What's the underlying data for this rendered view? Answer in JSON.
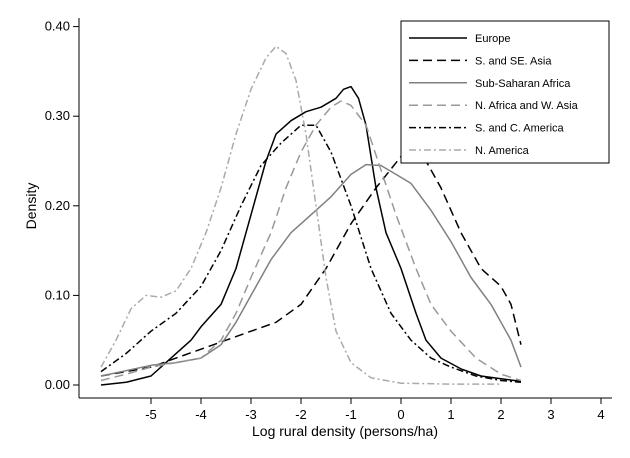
{
  "chart_data": {
    "type": "line",
    "xlabel": "Log rural density (persons/ha)",
    "ylabel": "Density",
    "xlim": [
      -6,
      4
    ],
    "ylim": [
      0,
      0.42
    ],
    "xticks": [
      -5,
      -4,
      -3,
      -2,
      -1,
      0,
      1,
      2,
      3,
      4
    ],
    "xtick_labels": [
      "-5",
      "-4",
      "-3",
      "-2",
      "-1",
      "0",
      "1",
      "2",
      "3",
      "4"
    ],
    "yticks": [
      0,
      0.1,
      0.2,
      0.3,
      0.4
    ],
    "ytick_labels": [
      "0.00",
      "0.10",
      "0.20",
      "0.30",
      "0.40"
    ],
    "grid": false,
    "legend_position": "top-right",
    "series": [
      {
        "name": "Europe",
        "color": "#000000",
        "dash": "solid",
        "points": [
          [
            -6.0,
            0.0
          ],
          [
            -5.5,
            0.003
          ],
          [
            -5.0,
            0.01
          ],
          [
            -4.6,
            0.03
          ],
          [
            -4.2,
            0.05
          ],
          [
            -4.0,
            0.065
          ],
          [
            -3.6,
            0.09
          ],
          [
            -3.3,
            0.13
          ],
          [
            -3.0,
            0.19
          ],
          [
            -2.7,
            0.25
          ],
          [
            -2.5,
            0.28
          ],
          [
            -2.2,
            0.295
          ],
          [
            -1.9,
            0.305
          ],
          [
            -1.6,
            0.31
          ],
          [
            -1.3,
            0.32
          ],
          [
            -1.15,
            0.33
          ],
          [
            -1.0,
            0.333
          ],
          [
            -0.85,
            0.32
          ],
          [
            -0.7,
            0.29
          ],
          [
            -0.5,
            0.22
          ],
          [
            -0.3,
            0.17
          ],
          [
            0.0,
            0.13
          ],
          [
            0.3,
            0.08
          ],
          [
            0.5,
            0.05
          ],
          [
            0.8,
            0.03
          ],
          [
            1.2,
            0.018
          ],
          [
            1.6,
            0.01
          ],
          [
            2.0,
            0.007
          ],
          [
            2.4,
            0.004
          ]
        ]
      },
      {
        "name": "S. and SE. Asia",
        "color": "#000000",
        "dash": "dashed",
        "points": [
          [
            -6.0,
            0.01
          ],
          [
            -5.5,
            0.015
          ],
          [
            -5.0,
            0.02
          ],
          [
            -4.5,
            0.03
          ],
          [
            -4.0,
            0.04
          ],
          [
            -3.5,
            0.05
          ],
          [
            -3.0,
            0.06
          ],
          [
            -2.5,
            0.07
          ],
          [
            -2.0,
            0.09
          ],
          [
            -1.5,
            0.13
          ],
          [
            -1.0,
            0.18
          ],
          [
            -0.5,
            0.22
          ],
          [
            0.0,
            0.255
          ],
          [
            0.4,
            0.26
          ],
          [
            0.8,
            0.22
          ],
          [
            1.2,
            0.17
          ],
          [
            1.6,
            0.13
          ],
          [
            2.0,
            0.11
          ],
          [
            2.2,
            0.09
          ],
          [
            2.4,
            0.045
          ]
        ]
      },
      {
        "name": "Sub-Saharan Africa",
        "color": "#808080",
        "dash": "solid",
        "points": [
          [
            -6.0,
            0.01
          ],
          [
            -5.5,
            0.016
          ],
          [
            -5.0,
            0.022
          ],
          [
            -4.5,
            0.025
          ],
          [
            -4.0,
            0.03
          ],
          [
            -3.6,
            0.045
          ],
          [
            -3.3,
            0.07
          ],
          [
            -3.0,
            0.1
          ],
          [
            -2.6,
            0.14
          ],
          [
            -2.2,
            0.17
          ],
          [
            -1.8,
            0.19
          ],
          [
            -1.4,
            0.21
          ],
          [
            -1.0,
            0.235
          ],
          [
            -0.7,
            0.246
          ],
          [
            -0.4,
            0.245
          ],
          [
            -0.1,
            0.235
          ],
          [
            0.2,
            0.225
          ],
          [
            0.6,
            0.195
          ],
          [
            1.0,
            0.16
          ],
          [
            1.4,
            0.12
          ],
          [
            1.8,
            0.09
          ],
          [
            2.2,
            0.05
          ],
          [
            2.4,
            0.02
          ]
        ]
      },
      {
        "name": "N. Africa and W. Asia",
        "color": "#999999",
        "dash": "dashed",
        "points": [
          [
            -6.0,
            0.005
          ],
          [
            -5.5,
            0.012
          ],
          [
            -5.0,
            0.02
          ],
          [
            -4.5,
            0.025
          ],
          [
            -4.0,
            0.03
          ],
          [
            -3.6,
            0.05
          ],
          [
            -3.3,
            0.08
          ],
          [
            -3.0,
            0.12
          ],
          [
            -2.6,
            0.17
          ],
          [
            -2.3,
            0.22
          ],
          [
            -2.0,
            0.26
          ],
          [
            -1.7,
            0.29
          ],
          [
            -1.4,
            0.31
          ],
          [
            -1.2,
            0.317
          ],
          [
            -1.0,
            0.312
          ],
          [
            -0.7,
            0.29
          ],
          [
            -0.4,
            0.24
          ],
          [
            -0.1,
            0.19
          ],
          [
            0.3,
            0.13
          ],
          [
            0.6,
            0.09
          ],
          [
            1.0,
            0.06
          ],
          [
            1.5,
            0.03
          ],
          [
            2.0,
            0.012
          ],
          [
            2.4,
            0.005
          ]
        ]
      },
      {
        "name": "S. and C. America",
        "color": "#000000",
        "dash": "dashdot",
        "points": [
          [
            -6.0,
            0.015
          ],
          [
            -5.5,
            0.035
          ],
          [
            -5.0,
            0.06
          ],
          [
            -4.5,
            0.08
          ],
          [
            -4.0,
            0.11
          ],
          [
            -3.6,
            0.15
          ],
          [
            -3.2,
            0.2
          ],
          [
            -2.8,
            0.245
          ],
          [
            -2.4,
            0.27
          ],
          [
            -2.0,
            0.29
          ],
          [
            -1.7,
            0.29
          ],
          [
            -1.4,
            0.26
          ],
          [
            -1.0,
            0.2
          ],
          [
            -0.6,
            0.13
          ],
          [
            -0.2,
            0.08
          ],
          [
            0.2,
            0.05
          ],
          [
            0.6,
            0.03
          ],
          [
            1.0,
            0.02
          ],
          [
            1.5,
            0.01
          ],
          [
            2.0,
            0.005
          ],
          [
            2.4,
            0.003
          ]
        ]
      },
      {
        "name": "N. America",
        "color": "#aaaaaa",
        "dash": "dashdot",
        "points": [
          [
            -6.0,
            0.02
          ],
          [
            -5.7,
            0.05
          ],
          [
            -5.4,
            0.085
          ],
          [
            -5.1,
            0.1
          ],
          [
            -4.8,
            0.098
          ],
          [
            -4.5,
            0.105
          ],
          [
            -4.2,
            0.13
          ],
          [
            -3.9,
            0.17
          ],
          [
            -3.6,
            0.22
          ],
          [
            -3.3,
            0.28
          ],
          [
            -3.0,
            0.33
          ],
          [
            -2.7,
            0.365
          ],
          [
            -2.5,
            0.378
          ],
          [
            -2.3,
            0.37
          ],
          [
            -2.1,
            0.34
          ],
          [
            -1.9,
            0.28
          ],
          [
            -1.7,
            0.2
          ],
          [
            -1.5,
            0.12
          ],
          [
            -1.3,
            0.06
          ],
          [
            -1.0,
            0.025
          ],
          [
            -0.6,
            0.008
          ],
          [
            0.0,
            0.002
          ],
          [
            1.0,
            0.001
          ],
          [
            2.0,
            0.001
          ]
        ]
      }
    ]
  }
}
